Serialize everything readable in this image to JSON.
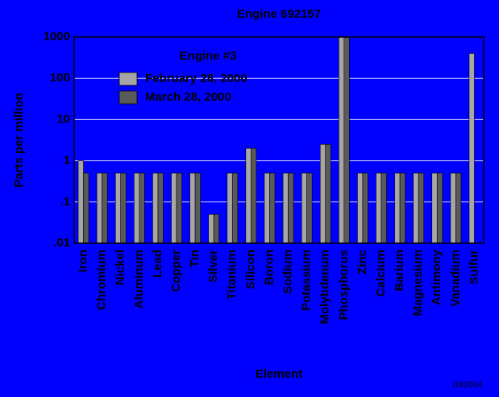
{
  "chart_data": {
    "type": "bar",
    "title": "Engine 692157",
    "x_label": "Element",
    "y_label": "Parts per million",
    "legend_title": "Engine #3",
    "annotation": "030004",
    "categories": [
      "Iron",
      "Chromium",
      "Nickel",
      "Aluminum",
      "Lead",
      "Copper",
      "Tin",
      "Silver",
      "Titanium",
      "Silicon",
      "Boron",
      "Sodium",
      "Potassium",
      "Molybdenum",
      "Phosphorus",
      "Zinc",
      "Calcium",
      "Barium",
      "Magnesium",
      "Antimony",
      "Vanadium",
      "Sulfur"
    ],
    "series": [
      {
        "name": "February 28, 2000",
        "color": "#a6a6a6",
        "values": [
          1,
          0.5,
          0.5,
          0.5,
          0.5,
          0.5,
          0.5,
          0.05,
          0.5,
          2,
          0.5,
          0.5,
          0.5,
          2.5,
          1000,
          0.5,
          0.5,
          0.5,
          0.5,
          0.5,
          0.5,
          400
        ]
      },
      {
        "name": "March 28, 2000",
        "color": "#5a5a5a",
        "values": [
          0.5,
          0.5,
          0.5,
          0.5,
          0.5,
          0.5,
          0.5,
          0.05,
          0.5,
          2,
          0.5,
          0.5,
          0.5,
          2.5,
          1000,
          0.5,
          0.5,
          0.5,
          0.5,
          0.5,
          0.5,
          null
        ]
      }
    ],
    "log_scale": true,
    "ylim": [
      0.01,
      1000
    ],
    "yticks": [
      {
        "value": 0.01,
        "label": ".01"
      },
      {
        "value": 0.1,
        "label": ".1"
      },
      1,
      10,
      100,
      1000
    ],
    "grid": true,
    "background": "#0000ff"
  }
}
